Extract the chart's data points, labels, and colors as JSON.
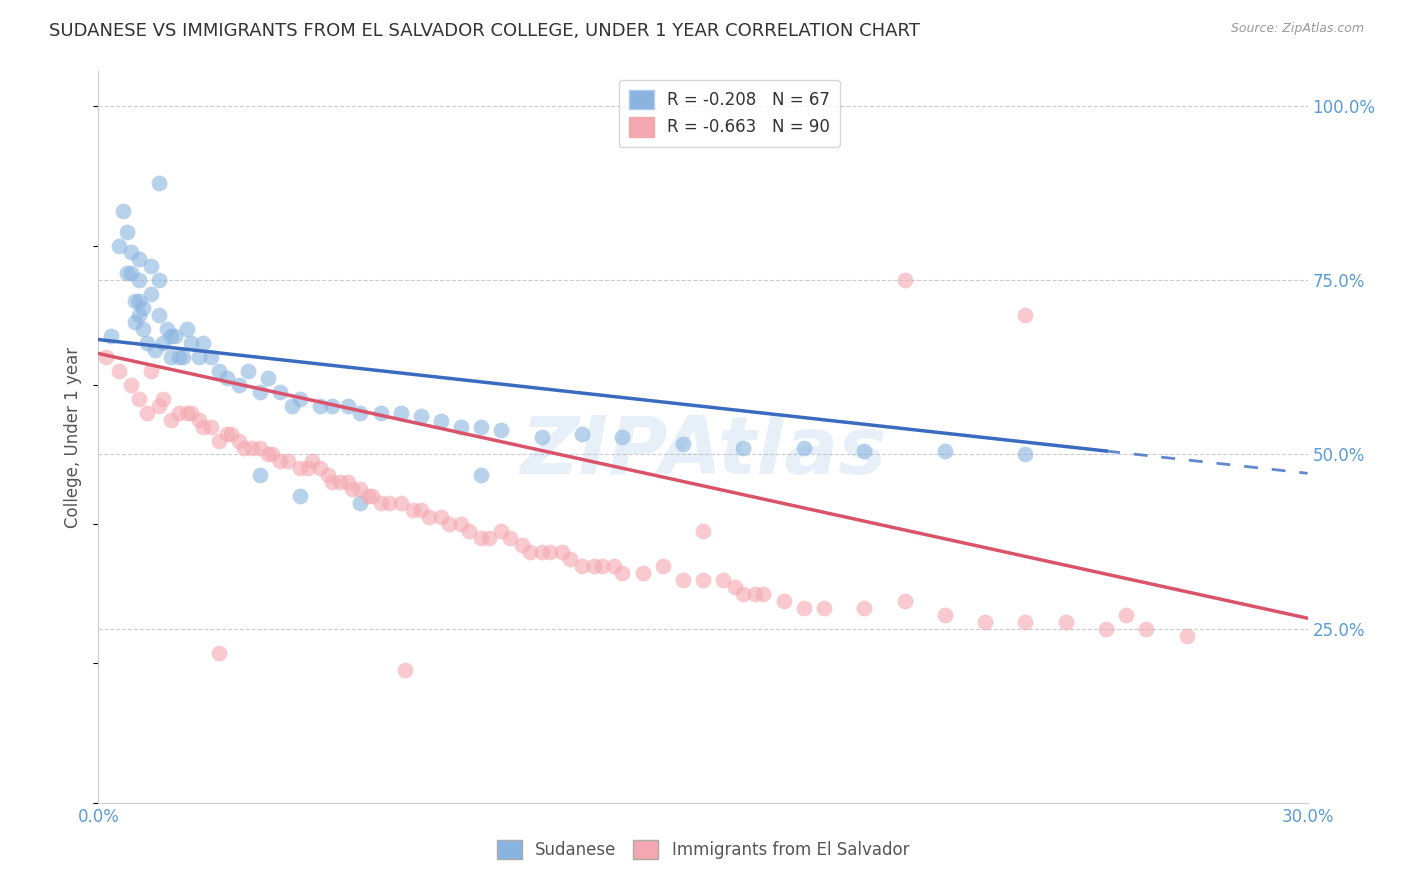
{
  "title": "SUDANESE VS IMMIGRANTS FROM EL SALVADOR COLLEGE, UNDER 1 YEAR CORRELATION CHART",
  "source": "Source: ZipAtlas.com",
  "ylabel": "College, Under 1 year",
  "xlim": [
    0.0,
    0.3
  ],
  "ylim": [
    0.0,
    1.05
  ],
  "yticks_right": [
    0.25,
    0.5,
    0.75,
    1.0
  ],
  "ytick_labels_right": [
    "25.0%",
    "50.0%",
    "75.0%",
    "100.0%"
  ],
  "legend_label_blue": "R = -0.208   N = 67",
  "legend_label_pink": "R = -0.663   N = 90",
  "sudanese_color": "#8ab4e0",
  "salvador_color": "#f4a7b0",
  "trendline_blue": "#3a6bbf",
  "trendline_pink": "#d9536a",
  "background_color": "#ffffff",
  "grid_color": "#cccccc",
  "axis_color": "#5b9bd5",
  "title_fontsize": 13,
  "label_fontsize": 12,
  "tick_fontsize": 12,
  "watermark": "ZIPAtlas",
  "trendline_blue_x0": 0.0,
  "trendline_blue_y0": 0.665,
  "trendline_blue_x1": 0.25,
  "trendline_blue_y1": 0.505,
  "trendline_blue_dash_x1": 0.3,
  "trendline_blue_dash_y1": 0.473,
  "trendline_pink_x0": 0.0,
  "trendline_pink_y0": 0.645,
  "trendline_pink_x1": 0.3,
  "trendline_pink_y1": 0.265,
  "sudanese_x": [
    0.003,
    0.005,
    0.006,
    0.007,
    0.007,
    0.008,
    0.008,
    0.009,
    0.009,
    0.01,
    0.01,
    0.01,
    0.01,
    0.011,
    0.011,
    0.012,
    0.013,
    0.013,
    0.014,
    0.015,
    0.015,
    0.016,
    0.017,
    0.018,
    0.018,
    0.019,
    0.02,
    0.021,
    0.022,
    0.023,
    0.025,
    0.026,
    0.028,
    0.03,
    0.032,
    0.035,
    0.037,
    0.04,
    0.042,
    0.045,
    0.048,
    0.05,
    0.055,
    0.058,
    0.062,
    0.065,
    0.07,
    0.075,
    0.08,
    0.085,
    0.09,
    0.095,
    0.1,
    0.11,
    0.12,
    0.13,
    0.145,
    0.16,
    0.175,
    0.19,
    0.21,
    0.23,
    0.095,
    0.04,
    0.05,
    0.065,
    0.015
  ],
  "sudanese_y": [
    0.67,
    0.8,
    0.85,
    0.76,
    0.82,
    0.76,
    0.79,
    0.69,
    0.72,
    0.7,
    0.72,
    0.75,
    0.78,
    0.68,
    0.71,
    0.66,
    0.73,
    0.77,
    0.65,
    0.7,
    0.75,
    0.66,
    0.68,
    0.64,
    0.67,
    0.67,
    0.64,
    0.64,
    0.68,
    0.66,
    0.64,
    0.66,
    0.64,
    0.62,
    0.61,
    0.6,
    0.62,
    0.59,
    0.61,
    0.59,
    0.57,
    0.58,
    0.57,
    0.57,
    0.57,
    0.56,
    0.56,
    0.56,
    0.555,
    0.548,
    0.54,
    0.54,
    0.535,
    0.525,
    0.53,
    0.525,
    0.515,
    0.51,
    0.51,
    0.505,
    0.505,
    0.5,
    0.47,
    0.47,
    0.44,
    0.43,
    0.89
  ],
  "salvador_x": [
    0.002,
    0.005,
    0.008,
    0.01,
    0.012,
    0.013,
    0.015,
    0.016,
    0.018,
    0.02,
    0.022,
    0.023,
    0.025,
    0.026,
    0.028,
    0.03,
    0.032,
    0.033,
    0.035,
    0.036,
    0.038,
    0.04,
    0.042,
    0.043,
    0.045,
    0.047,
    0.05,
    0.052,
    0.053,
    0.055,
    0.057,
    0.058,
    0.06,
    0.062,
    0.063,
    0.065,
    0.067,
    0.068,
    0.07,
    0.072,
    0.075,
    0.078,
    0.08,
    0.082,
    0.085,
    0.087,
    0.09,
    0.092,
    0.095,
    0.097,
    0.1,
    0.102,
    0.105,
    0.107,
    0.11,
    0.112,
    0.115,
    0.117,
    0.12,
    0.123,
    0.125,
    0.128,
    0.13,
    0.135,
    0.14,
    0.145,
    0.15,
    0.155,
    0.158,
    0.16,
    0.163,
    0.165,
    0.17,
    0.175,
    0.18,
    0.19,
    0.2,
    0.21,
    0.22,
    0.23,
    0.24,
    0.25,
    0.26,
    0.27,
    0.15,
    0.2,
    0.23,
    0.255,
    0.03,
    0.076
  ],
  "salvador_y": [
    0.64,
    0.62,
    0.6,
    0.58,
    0.56,
    0.62,
    0.57,
    0.58,
    0.55,
    0.56,
    0.56,
    0.56,
    0.55,
    0.54,
    0.54,
    0.52,
    0.53,
    0.53,
    0.52,
    0.51,
    0.51,
    0.51,
    0.5,
    0.5,
    0.49,
    0.49,
    0.48,
    0.48,
    0.49,
    0.48,
    0.47,
    0.46,
    0.46,
    0.46,
    0.45,
    0.45,
    0.44,
    0.44,
    0.43,
    0.43,
    0.43,
    0.42,
    0.42,
    0.41,
    0.41,
    0.4,
    0.4,
    0.39,
    0.38,
    0.38,
    0.39,
    0.38,
    0.37,
    0.36,
    0.36,
    0.36,
    0.36,
    0.35,
    0.34,
    0.34,
    0.34,
    0.34,
    0.33,
    0.33,
    0.34,
    0.32,
    0.32,
    0.32,
    0.31,
    0.3,
    0.3,
    0.3,
    0.29,
    0.28,
    0.28,
    0.28,
    0.29,
    0.27,
    0.26,
    0.26,
    0.26,
    0.25,
    0.25,
    0.24,
    0.39,
    0.75,
    0.7,
    0.27,
    0.215,
    0.19
  ]
}
